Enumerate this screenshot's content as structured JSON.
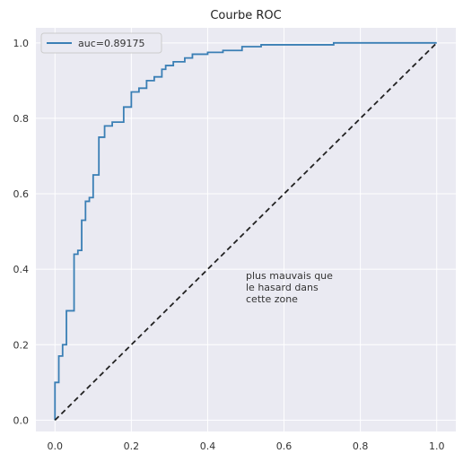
{
  "chart_data": {
    "type": "line",
    "title": "Courbe ROC",
    "xlabel": "",
    "ylabel": "",
    "xlim": [
      -0.05,
      1.05
    ],
    "ylim": [
      -0.03,
      1.04
    ],
    "xticks": [
      0.0,
      0.2,
      0.4,
      0.6,
      0.8,
      1.0
    ],
    "yticks": [
      0.0,
      0.2,
      0.4,
      0.6,
      0.8,
      1.0
    ],
    "xtick_labels": [
      "0.0",
      "0.2",
      "0.4",
      "0.6",
      "0.8",
      "1.0"
    ],
    "ytick_labels": [
      "0.0",
      "0.2",
      "0.4",
      "0.6",
      "0.8",
      "1.0"
    ],
    "grid": true,
    "legend_position": "top-left",
    "series": [
      {
        "name": "auc=0.89175",
        "color": "#3a7fb5",
        "style": "solid",
        "x": [
          0.0,
          0.0,
          0.01,
          0.01,
          0.02,
          0.02,
          0.03,
          0.03,
          0.04,
          0.04,
          0.05,
          0.05,
          0.06,
          0.06,
          0.07,
          0.07,
          0.08,
          0.08,
          0.09,
          0.09,
          0.1,
          0.1,
          0.115,
          0.115,
          0.13,
          0.13,
          0.15,
          0.15,
          0.18,
          0.18,
          0.2,
          0.2,
          0.22,
          0.22,
          0.24,
          0.24,
          0.26,
          0.26,
          0.28,
          0.28,
          0.29,
          0.29,
          0.31,
          0.31,
          0.34,
          0.34,
          0.36,
          0.36,
          0.4,
          0.4,
          0.44,
          0.44,
          0.49,
          0.49,
          0.54,
          0.54,
          0.73,
          0.73,
          1.0
        ],
        "y": [
          0.0,
          0.1,
          0.1,
          0.17,
          0.17,
          0.2,
          0.2,
          0.29,
          0.29,
          0.29,
          0.29,
          0.44,
          0.44,
          0.45,
          0.45,
          0.53,
          0.53,
          0.58,
          0.58,
          0.59,
          0.59,
          0.65,
          0.65,
          0.75,
          0.75,
          0.78,
          0.78,
          0.79,
          0.79,
          0.83,
          0.83,
          0.87,
          0.87,
          0.88,
          0.88,
          0.9,
          0.9,
          0.91,
          0.91,
          0.93,
          0.93,
          0.94,
          0.94,
          0.95,
          0.95,
          0.96,
          0.96,
          0.97,
          0.97,
          0.975,
          0.975,
          0.98,
          0.98,
          0.99,
          0.99,
          0.995,
          0.995,
          1.0,
          1.0
        ]
      },
      {
        "name": "",
        "color": "#222222",
        "style": "dashed",
        "x": [
          0.0,
          1.0
        ],
        "y": [
          0.0,
          1.0
        ]
      }
    ],
    "annotation": {
      "text_lines": [
        "plus mauvais que",
        "le hasard dans",
        "cette zone"
      ],
      "x": 0.5,
      "y": 0.4
    },
    "colors": {
      "plot_background": "#eaeaf2",
      "grid": "#ffffff"
    }
  }
}
